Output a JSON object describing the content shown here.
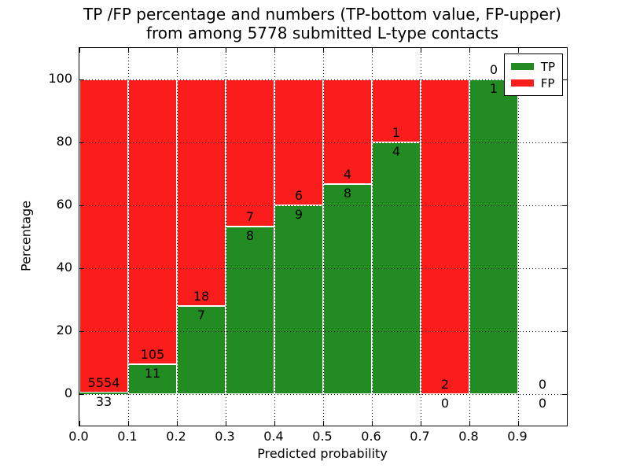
{
  "title": {
    "line1": "TP /FP percentage and numbers (TP-bottom value, FP-upper)",
    "line2": "from among 5778 submitted L-type contacts"
  },
  "chart_data": {
    "type": "bar",
    "stacked": true,
    "normalization": "each 0.1-wide probability bin scaled so TP+FP = 100%",
    "title": "TP /FP percentage and numbers (TP-bottom value, FP-upper) from among 5778 submitted L-type contacts",
    "xlabel": "Predicted probability",
    "ylabel": "Percentage",
    "xlim": [
      0.0,
      1.0
    ],
    "ylim": [
      -10,
      110
    ],
    "bin_width": 0.1,
    "xtick_labels": [
      "0.0",
      "0.1",
      "0.2",
      "0.3",
      "0.4",
      "0.5",
      "0.6",
      "0.7",
      "0.8",
      "0.9"
    ],
    "xtick_values": [
      0.0,
      0.1,
      0.2,
      0.3,
      0.4,
      0.5,
      0.6,
      0.7,
      0.8,
      0.9
    ],
    "ytick_values": [
      0,
      20,
      40,
      60,
      80,
      100
    ],
    "grid_style": "dotted",
    "total_submitted": 5778,
    "categories": [
      "0.0-0.1",
      "0.1-0.2",
      "0.2-0.3",
      "0.3-0.4",
      "0.4-0.5",
      "0.5-0.6",
      "0.6-0.7",
      "0.7-0.8",
      "0.8-0.9",
      "0.9-1.0"
    ],
    "series": [
      {
        "name": "TP",
        "color": "#228b22",
        "values": [
          33,
          11,
          7,
          8,
          9,
          8,
          4,
          0,
          1,
          0
        ]
      },
      {
        "name": "FP",
        "color": "#fb1c1c",
        "values": [
          5554,
          105,
          18,
          7,
          6,
          4,
          1,
          2,
          0,
          0
        ]
      }
    ],
    "tp_percent_of_bin": [
      0.59,
      9.48,
      28.0,
      53.33,
      60.0,
      66.67,
      80.0,
      0.0,
      100.0,
      null
    ],
    "legend": {
      "position": "upper right",
      "entries": [
        {
          "label": "TP",
          "color": "#228b22"
        },
        {
          "label": "FP",
          "color": "#fb1c1c"
        }
      ]
    }
  }
}
